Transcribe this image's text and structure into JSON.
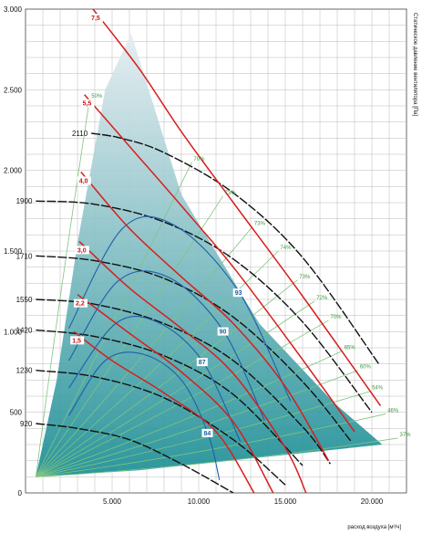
{
  "chart_data": {
    "type": "line",
    "title": "",
    "xlabel": "расход воздуха [м³/ч]",
    "ylabel": "Статическое давление вентилятора [Па]",
    "xlim": [
      0,
      22000
    ],
    "ylim": [
      0,
      3000
    ],
    "grid": true,
    "x_tick_labels": [
      "5.000",
      "10.000",
      "15.000",
      "20.000"
    ],
    "x_tick_values": [
      5000,
      10000,
      15000,
      20000
    ],
    "y_tick_labels": [
      "0",
      "500",
      "1.000",
      "1.500",
      "2.000",
      "2.500",
      "3.000"
    ],
    "y_tick_values": [
      0,
      500,
      1000,
      1500,
      2000,
      2500,
      3000
    ],
    "operating_envelope": [
      [
        600,
        100
      ],
      [
        1800,
        700
      ],
      [
        3000,
        1550
      ],
      [
        4600,
        2500
      ],
      [
        6100,
        2850
      ],
      [
        9000,
        1850
      ],
      [
        13500,
        1050
      ],
      [
        17800,
        560
      ],
      [
        20600,
        300
      ],
      [
        6500,
        140
      ]
    ],
    "speed_curves": [
      {
        "name": "920",
        "points": [
          [
            600,
            430
          ],
          [
            3000,
            400
          ],
          [
            6000,
            330
          ],
          [
            9000,
            180
          ],
          [
            12000,
            0
          ]
        ]
      },
      {
        "name": "1230",
        "points": [
          [
            600,
            760
          ],
          [
            4000,
            720
          ],
          [
            8000,
            590
          ],
          [
            12000,
            330
          ],
          [
            15000,
            50
          ]
        ]
      },
      {
        "name": "1420",
        "points": [
          [
            600,
            1010
          ],
          [
            4000,
            970
          ],
          [
            8000,
            850
          ],
          [
            12000,
            610
          ],
          [
            16000,
            170
          ]
        ]
      },
      {
        "name": "1550",
        "points": [
          [
            600,
            1200
          ],
          [
            4000,
            1170
          ],
          [
            8000,
            1050
          ],
          [
            12000,
            820
          ],
          [
            16000,
            410
          ],
          [
            17600,
            180
          ]
        ]
      },
      {
        "name": "1710",
        "points": [
          [
            600,
            1470
          ],
          [
            4000,
            1440
          ],
          [
            8000,
            1330
          ],
          [
            12000,
            1090
          ],
          [
            16000,
            690
          ],
          [
            18800,
            320
          ]
        ]
      },
      {
        "name": "1900",
        "points": [
          [
            600,
            1810
          ],
          [
            4000,
            1790
          ],
          [
            8000,
            1680
          ],
          [
            12000,
            1450
          ],
          [
            16000,
            1060
          ],
          [
            20000,
            500
          ]
        ]
      },
      {
        "name": "2110",
        "points": [
          [
            3800,
            2230
          ],
          [
            5500,
            2200
          ],
          [
            8000,
            2110
          ],
          [
            12000,
            1860
          ],
          [
            16000,
            1460
          ],
          [
            20400,
            800
          ]
        ]
      }
    ],
    "power_curves": [
      {
        "name": "1,5",
        "points": [
          [
            2800,
            1000
          ],
          [
            5000,
            820
          ],
          [
            8000,
            620
          ],
          [
            11000,
            380
          ],
          [
            13200,
            0
          ]
        ]
      },
      {
        "name": "2,2",
        "points": [
          [
            3000,
            1230
          ],
          [
            6000,
            990
          ],
          [
            9000,
            750
          ],
          [
            12000,
            440
          ],
          [
            14300,
            0
          ]
        ]
      },
      {
        "name": "3,0",
        "points": [
          [
            3100,
            1560
          ],
          [
            6000,
            1270
          ],
          [
            9000,
            1020
          ],
          [
            12000,
            740
          ],
          [
            15000,
            280
          ],
          [
            16200,
            0
          ]
        ]
      },
      {
        "name": "4,0",
        "points": [
          [
            3200,
            1990
          ],
          [
            6000,
            1640
          ],
          [
            9000,
            1340
          ],
          [
            12000,
            1050
          ],
          [
            15000,
            660
          ],
          [
            17500,
            200
          ]
        ]
      },
      {
        "name": "5,5",
        "points": [
          [
            3400,
            2470
          ],
          [
            6000,
            2150
          ],
          [
            9000,
            1780
          ],
          [
            12000,
            1400
          ],
          [
            15500,
            900
          ],
          [
            19000,
            380
          ]
        ]
      },
      {
        "name": "7,5",
        "points": [
          [
            3900,
            3000
          ],
          [
            6500,
            2640
          ],
          [
            9000,
            2240
          ],
          [
            12000,
            1800
          ],
          [
            16000,
            1220
          ],
          [
            20500,
            540
          ]
        ]
      }
    ],
    "efficiency_curves": [
      {
        "name": "84",
        "points": [
          [
            2500,
            480
          ],
          [
            4600,
            820
          ],
          [
            6800,
            860
          ],
          [
            9000,
            700
          ],
          [
            10500,
            380
          ],
          [
            11200,
            80
          ]
        ]
      },
      {
        "name": "87",
        "points": [
          [
            2500,
            650
          ],
          [
            5200,
            1050
          ],
          [
            7600,
            1060
          ],
          [
            10200,
            820
          ],
          [
            12400,
            320
          ]
        ]
      },
      {
        "name": "90",
        "points": [
          [
            2500,
            820
          ],
          [
            5300,
            1310
          ],
          [
            8200,
            1340
          ],
          [
            11400,
            1010
          ],
          [
            13800,
            450
          ]
        ]
      },
      {
        "name": "93",
        "points": [
          [
            2500,
            1020
          ],
          [
            5600,
            1640
          ],
          [
            8600,
            1660
          ],
          [
            12300,
            1250
          ],
          [
            15300,
            570
          ]
        ]
      }
    ],
    "efficiency_rays": [
      {
        "name": "50%",
        "label_at": [
          3700,
          2440
        ]
      },
      {
        "name": "70%",
        "label_at": [
          9600,
          2050
        ]
      },
      {
        "name": "73%",
        "label_at": [
          11400,
          1840
        ]
      },
      {
        "name": "73%",
        "label_at": [
          13100,
          1650
        ]
      },
      {
        "name": "74%",
        "label_at": [
          14600,
          1500
        ]
      },
      {
        "name": "73%",
        "label_at": [
          15700,
          1320
        ]
      },
      {
        "name": "72%",
        "label_at": [
          16700,
          1190
        ]
      },
      {
        "name": "70%",
        "label_at": [
          17500,
          1070
        ]
      },
      {
        "name": "65%",
        "label_at": [
          18300,
          880
        ]
      },
      {
        "name": "60%",
        "label_at": [
          19200,
          760
        ]
      },
      {
        "name": "54%",
        "label_at": [
          19900,
          630
        ]
      },
      {
        "name": "46%",
        "label_at": [
          20800,
          490
        ]
      },
      {
        "name": "37%",
        "label_at": [
          21500,
          340
        ]
      }
    ]
  },
  "colors": {
    "speed": "#111111",
    "power": "#d81e1e",
    "efficiency": "#1f5fa8",
    "rays": "#7fc47f",
    "envelope_top": "#e6edf1",
    "envelope_bottom": "#1b8e95",
    "grid": "#b8b8b8"
  },
  "axis": {
    "ylabel": "Статическое давление вентилятора [Па]",
    "xlabel": "расход воздуха [м³/ч]"
  }
}
